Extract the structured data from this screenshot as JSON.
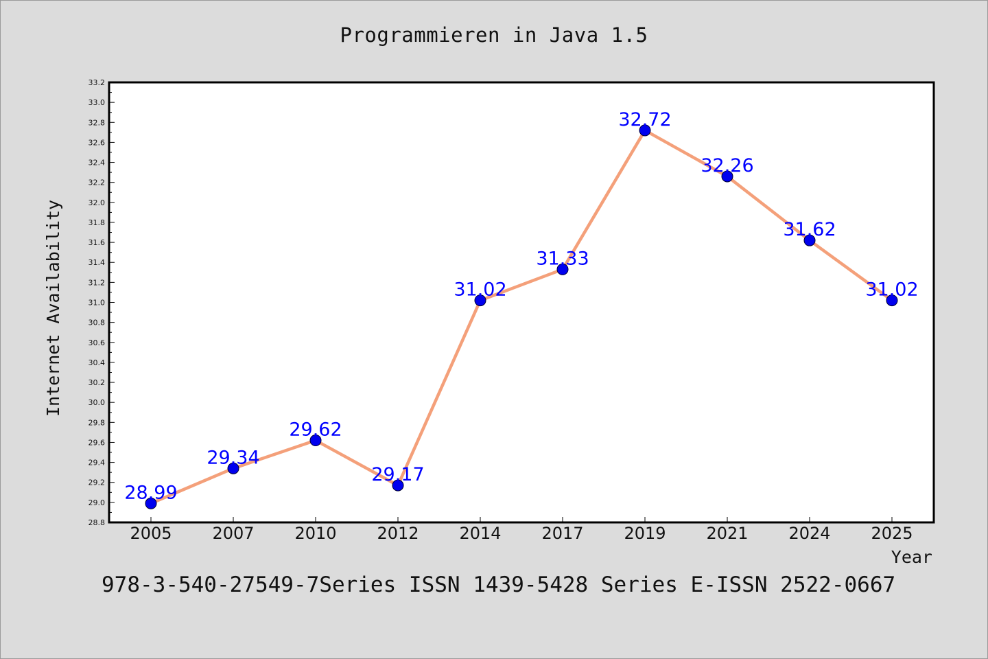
{
  "header": {
    "title": "Programmieren in Java 1.5"
  },
  "footer": {
    "text": "978-3-540-27549-7Series ISSN 1439-5428 Series E-ISSN 2522-0667"
  },
  "chart_data": {
    "type": "line",
    "title": "Programmieren in Java 1.5",
    "xlabel": "Year",
    "ylabel": "Internet Availability",
    "categories": [
      "2005",
      "2007",
      "2010",
      "2012",
      "2014",
      "2017",
      "2019",
      "2021",
      "2024",
      "2025"
    ],
    "series": [
      {
        "values": [
          28.99,
          29.34,
          29.62,
          29.17,
          31.02,
          31.33,
          32.72,
          32.26,
          31.62,
          31.02
        ]
      }
    ],
    "value_labels": [
      "28.99",
      "29.34",
      "29.62",
      "29.17",
      "31.02",
      "31.33",
      "32.72",
      "32.26",
      "31.62",
      "31.02"
    ],
    "ylim": [
      28.8,
      33.2
    ],
    "yticks": [
      "28.8",
      "29.0",
      "29.2",
      "29.4",
      "29.6",
      "29.8",
      "30.0",
      "30.2",
      "30.4",
      "30.6",
      "30.8",
      "31.0",
      "31.2",
      "31.4",
      "31.6",
      "31.8",
      "32.0",
      "32.2",
      "32.4",
      "32.6",
      "32.8",
      "33.0",
      "33.2"
    ],
    "grid": false,
    "colors": {
      "line": "#f4a07a",
      "marker": "#0000ee",
      "label": "#0000ff",
      "background": "#ffffff"
    }
  }
}
